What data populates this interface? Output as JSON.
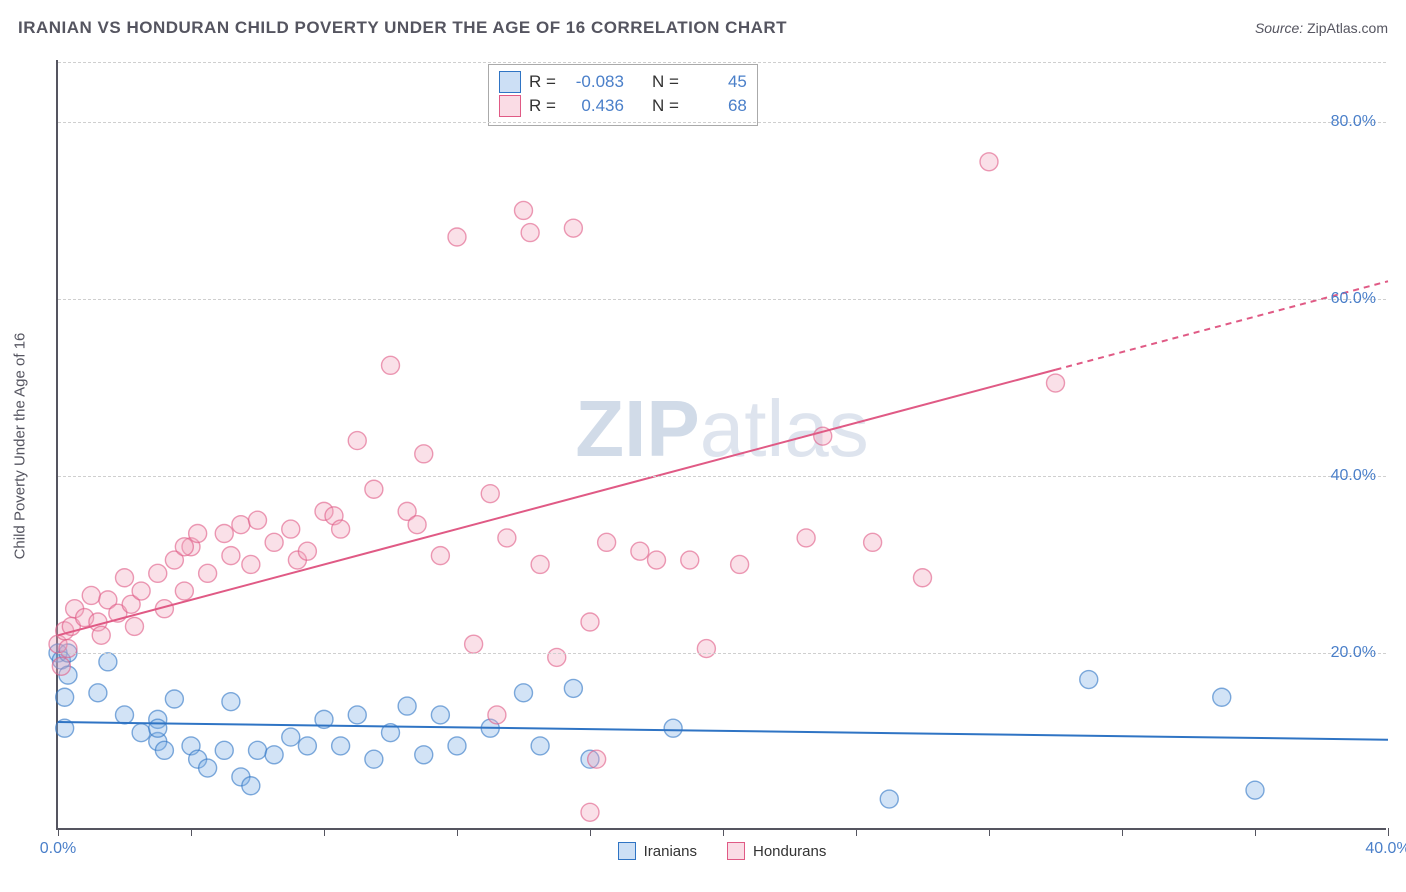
{
  "header": {
    "title": "IRANIAN VS HONDURAN CHILD POVERTY UNDER THE AGE OF 16 CORRELATION CHART",
    "source_label": "Source:",
    "source_value": "ZipAtlas.com"
  },
  "watermark": {
    "part1": "ZIP",
    "part2": "atlas"
  },
  "chart": {
    "type": "scatter",
    "y_axis_title": "Child Poverty Under the Age of 16",
    "xlim": [
      0,
      40
    ],
    "ylim": [
      0,
      87
    ],
    "x_ticks": [
      0,
      4,
      8,
      12,
      16,
      20,
      24,
      28,
      32,
      36,
      40
    ],
    "x_tick_labels": {
      "0": "0.0%",
      "40": "40.0%"
    },
    "y_gridlines": [
      20,
      40,
      60,
      80
    ],
    "y_tick_labels": {
      "20": "20.0%",
      "40": "40.0%",
      "60": "60.0%",
      "80": "80.0%"
    },
    "background_color": "#ffffff",
    "grid_color": "#cfcfcf",
    "marker_radius": 9,
    "marker_fill_opacity": 0.35,
    "marker_stroke_width": 1.4,
    "line_width": 2,
    "series": [
      {
        "name": "Iranians",
        "color_stroke": "#2f74c4",
        "color_fill": "#7fb0e6",
        "R": "-0.083",
        "N": "45",
        "trend": {
          "x1": 0,
          "y1": 12.2,
          "x2": 40,
          "y2": 10.2,
          "dashed_from_x": null
        },
        "points": [
          [
            0.0,
            20.0
          ],
          [
            0.1,
            19.2
          ],
          [
            0.3,
            20.0
          ],
          [
            0.2,
            15.0
          ],
          [
            0.3,
            17.5
          ],
          [
            0.2,
            11.5
          ],
          [
            1.5,
            19.0
          ],
          [
            1.2,
            15.5
          ],
          [
            2.0,
            13.0
          ],
          [
            2.5,
            11.0
          ],
          [
            3.0,
            10.0
          ],
          [
            3.2,
            9.0
          ],
          [
            3.0,
            12.5
          ],
          [
            3.5,
            14.8
          ],
          [
            3.0,
            11.5
          ],
          [
            4.0,
            9.5
          ],
          [
            4.2,
            8.0
          ],
          [
            4.5,
            7.0
          ],
          [
            5.0,
            9.0
          ],
          [
            5.2,
            14.5
          ],
          [
            5.5,
            6.0
          ],
          [
            5.8,
            5.0
          ],
          [
            6.0,
            9.0
          ],
          [
            6.5,
            8.5
          ],
          [
            7.0,
            10.5
          ],
          [
            7.5,
            9.5
          ],
          [
            8.0,
            12.5
          ],
          [
            8.5,
            9.5
          ],
          [
            9.0,
            13.0
          ],
          [
            9.5,
            8.0
          ],
          [
            10.0,
            11.0
          ],
          [
            10.5,
            14.0
          ],
          [
            11.5,
            13.0
          ],
          [
            11.0,
            8.5
          ],
          [
            12.0,
            9.5
          ],
          [
            13.0,
            11.5
          ],
          [
            14.0,
            15.5
          ],
          [
            14.5,
            9.5
          ],
          [
            15.5,
            16.0
          ],
          [
            16.0,
            8.0
          ],
          [
            18.5,
            11.5
          ],
          [
            25.0,
            3.5
          ],
          [
            31.0,
            17.0
          ],
          [
            35.0,
            15.0
          ],
          [
            36.0,
            4.5
          ]
        ]
      },
      {
        "name": "Hondurans",
        "color_stroke": "#e05a85",
        "color_fill": "#f2a7bd",
        "R": "0.436",
        "N": "68",
        "trend": {
          "x1": 0,
          "y1": 22.0,
          "x2": 40,
          "y2": 62.0,
          "dashed_from_x": 30
        },
        "points": [
          [
            0.0,
            21.0
          ],
          [
            0.2,
            22.5
          ],
          [
            0.3,
            20.5
          ],
          [
            0.1,
            18.5
          ],
          [
            0.4,
            23.0
          ],
          [
            0.5,
            25.0
          ],
          [
            0.8,
            24.0
          ],
          [
            1.0,
            26.5
          ],
          [
            1.2,
            23.5
          ],
          [
            1.3,
            22.0
          ],
          [
            1.5,
            26.0
          ],
          [
            1.8,
            24.5
          ],
          [
            2.0,
            28.5
          ],
          [
            2.2,
            25.5
          ],
          [
            2.3,
            23.0
          ],
          [
            2.5,
            27.0
          ],
          [
            3.0,
            29.0
          ],
          [
            3.2,
            25.0
          ],
          [
            3.5,
            30.5
          ],
          [
            3.8,
            27.0
          ],
          [
            4.0,
            32.0
          ],
          [
            4.5,
            29.0
          ],
          [
            5.0,
            33.5
          ],
          [
            5.2,
            31.0
          ],
          [
            5.5,
            34.5
          ],
          [
            5.8,
            30.0
          ],
          [
            6.0,
            35.0
          ],
          [
            6.5,
            32.5
          ],
          [
            7.0,
            34.0
          ],
          [
            7.2,
            30.5
          ],
          [
            7.5,
            31.5
          ],
          [
            8.0,
            36.0
          ],
          [
            8.3,
            35.5
          ],
          [
            8.5,
            34.0
          ],
          [
            9.0,
            44.0
          ],
          [
            9.5,
            38.5
          ],
          [
            10.0,
            52.5
          ],
          [
            10.5,
            36.0
          ],
          [
            10.8,
            34.5
          ],
          [
            11.0,
            42.5
          ],
          [
            11.5,
            31.0
          ],
          [
            12.0,
            67.0
          ],
          [
            12.5,
            21.0
          ],
          [
            13.0,
            38.0
          ],
          [
            13.2,
            13.0
          ],
          [
            13.5,
            33.0
          ],
          [
            14.0,
            70.0
          ],
          [
            14.2,
            67.5
          ],
          [
            14.5,
            30.0
          ],
          [
            15.0,
            19.5
          ],
          [
            15.5,
            68.0
          ],
          [
            16.0,
            23.5
          ],
          [
            16.2,
            8.0
          ],
          [
            16.5,
            32.5
          ],
          [
            16.0,
            2.0
          ],
          [
            17.5,
            31.5
          ],
          [
            18.0,
            30.5
          ],
          [
            19.0,
            30.5
          ],
          [
            19.5,
            20.5
          ],
          [
            20.5,
            30.0
          ],
          [
            22.5,
            33.0
          ],
          [
            23.0,
            44.5
          ],
          [
            24.5,
            32.5
          ],
          [
            26.0,
            28.5
          ],
          [
            28.0,
            75.5
          ],
          [
            30.0,
            50.5
          ],
          [
            3.8,
            32.0
          ],
          [
            4.2,
            33.5
          ]
        ]
      }
    ]
  },
  "legend_top": {
    "R_label": "R =",
    "N_label": "N ="
  },
  "legend_bottom": {
    "items": [
      "Iranians",
      "Hondurans"
    ]
  }
}
